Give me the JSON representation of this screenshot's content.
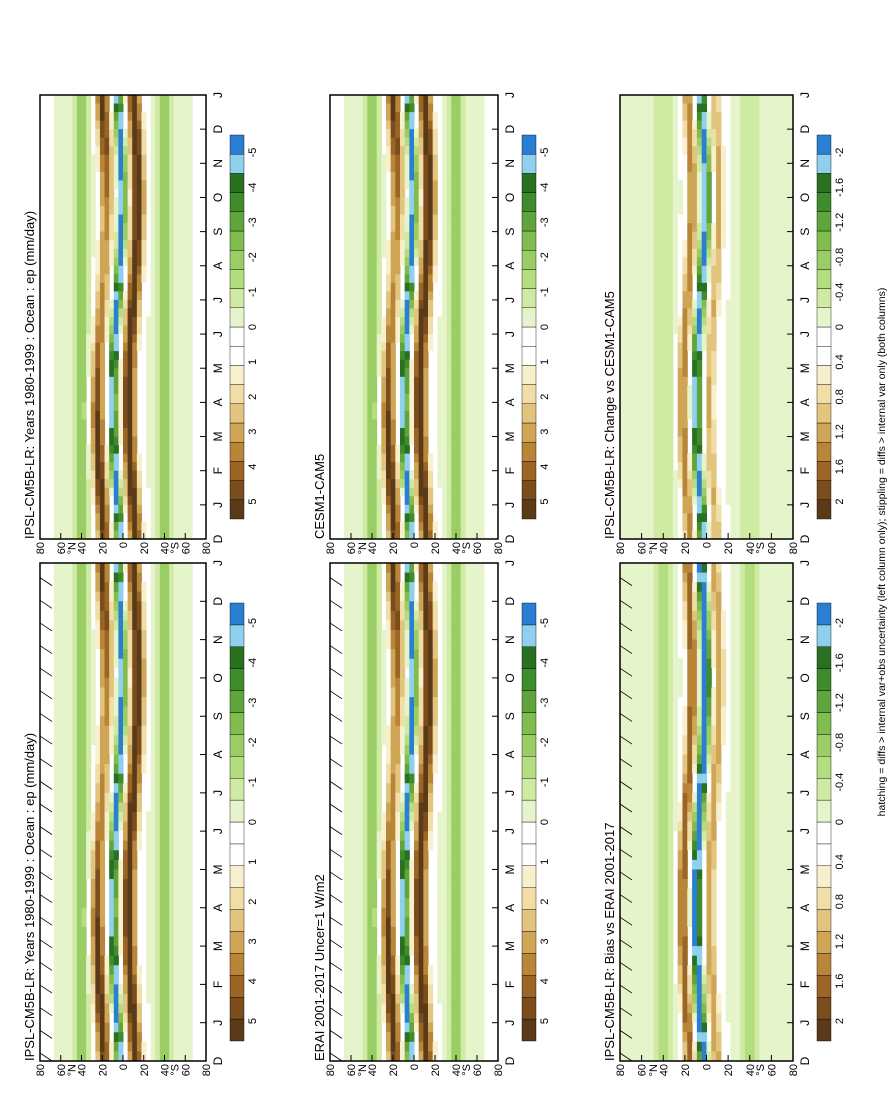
{
  "figure": {
    "footnote": "hatching = diffs > internal var+obs uncertainty (left column only); stippling = diffs > internal var only (both columns)"
  },
  "chart_data": [
    {
      "id": "p1",
      "type": "heatmap",
      "title": "IPSL-CM5B-LR: Years 1980-1999 : Ocean : ep (mm/day)",
      "x_ticks": [
        "D",
        "J",
        "F",
        "M",
        "A",
        "M",
        "J",
        "J",
        "A",
        "S",
        "O",
        "N",
        "D",
        "J"
      ],
      "y_ticks": [
        "80",
        "60",
        "40",
        "20",
        "0",
        "20",
        "40",
        "60",
        "80"
      ],
      "y_hemisphere_labels": {
        "north": "°N",
        "south": "°S"
      },
      "colorbar": {
        "labels": [
          "5",
          "4",
          "3",
          "2",
          "1",
          "0",
          "-1",
          "-2",
          "-3",
          "-4",
          "-5"
        ],
        "colors": [
          "#5a3a18",
          "#7b4c1c",
          "#9b6525",
          "#b98538",
          "#cfa556",
          "#e2c47f",
          "#f0dea6",
          "#f8efcd",
          "#ffffff",
          "#ffffff",
          "#e6f4cb",
          "#cfeaa3",
          "#b4dd82",
          "#9acd65",
          "#80bc4e",
          "#5fa43c",
          "#3f8c2c",
          "#2a7021",
          "#8fd0ef",
          "#2a7fd4"
        ]
      },
      "hatching": true,
      "variant": "model"
    },
    {
      "id": "p2",
      "type": "heatmap",
      "title": "IPSL-CM5B-LR: Years 1980-1999 : Ocean : ep (mm/day)",
      "x_ticks": [
        "D",
        "J",
        "F",
        "M",
        "A",
        "M",
        "J",
        "J",
        "A",
        "S",
        "O",
        "N",
        "D",
        "J"
      ],
      "y_ticks": [
        "80",
        "60",
        "40",
        "20",
        "0",
        "20",
        "40",
        "60",
        "80"
      ],
      "y_hemisphere_labels": {
        "north": "°N",
        "south": "°S"
      },
      "colorbar": {
        "labels": [
          "5",
          "4",
          "3",
          "2",
          "1",
          "0",
          "-1",
          "-2",
          "-3",
          "-4",
          "-5"
        ]
      },
      "hatching": false,
      "variant": "model"
    },
    {
      "id": "p3",
      "type": "heatmap",
      "title": "ERAI 2001-2017 Uncer=1 W/m2",
      "x_ticks": [
        "D",
        "J",
        "F",
        "M",
        "A",
        "M",
        "J",
        "J",
        "A",
        "S",
        "O",
        "N",
        "D",
        "J"
      ],
      "y_ticks": [
        "80",
        "60",
        "40",
        "20",
        "0",
        "20",
        "40",
        "60",
        "80"
      ],
      "y_hemisphere_labels": {
        "north": "°N",
        "south": "°S"
      },
      "colorbar": {
        "labels": [
          "5",
          "4",
          "3",
          "2",
          "1",
          "0",
          "-1",
          "-2",
          "-3",
          "-4",
          "-5"
        ]
      },
      "hatching": true,
      "variant": "obs"
    },
    {
      "id": "p4",
      "type": "heatmap",
      "title": "CESM1-CAM5",
      "x_ticks": [
        "D",
        "J",
        "F",
        "M",
        "A",
        "M",
        "J",
        "J",
        "A",
        "S",
        "O",
        "N",
        "D",
        "J"
      ],
      "y_ticks": [
        "80",
        "60",
        "40",
        "20",
        "0",
        "20",
        "40",
        "60",
        "80"
      ],
      "y_hemisphere_labels": {
        "north": "°N",
        "south": "°S"
      },
      "colorbar": {
        "labels": [
          "5",
          "4",
          "3",
          "2",
          "1",
          "0",
          "-1",
          "-2",
          "-3",
          "-4",
          "-5"
        ]
      },
      "hatching": false,
      "variant": "ref"
    },
    {
      "id": "p5",
      "type": "heatmap",
      "title": "IPSL-CM5B-LR: Bias vs ERAI 2001-2017",
      "x_ticks": [
        "D",
        "J",
        "F",
        "M",
        "A",
        "M",
        "J",
        "J",
        "A",
        "S",
        "O",
        "N",
        "D",
        "J"
      ],
      "y_ticks": [
        "80",
        "60",
        "40",
        "20",
        "0",
        "20",
        "40",
        "60",
        "80"
      ],
      "y_hemisphere_labels": {
        "north": "°N",
        "south": "°S"
      },
      "colorbar": {
        "labels": [
          "2",
          "1.6",
          "1.2",
          "0.8",
          "0.4",
          "0",
          "-0.4",
          "-0.8",
          "-1.2",
          "-1.6",
          "-2"
        ]
      },
      "hatching": true,
      "variant": "bias"
    },
    {
      "id": "p6",
      "type": "heatmap",
      "title": "IPSL-CM5B-LR: Change vs CESM1-CAM5",
      "x_ticks": [
        "D",
        "J",
        "F",
        "M",
        "A",
        "M",
        "J",
        "J",
        "A",
        "S",
        "O",
        "N",
        "D",
        "J"
      ],
      "y_ticks": [
        "80",
        "60",
        "40",
        "20",
        "0",
        "20",
        "40",
        "60",
        "80"
      ],
      "y_hemisphere_labels": {
        "north": "°N",
        "south": "°S"
      },
      "colorbar": {
        "labels": [
          "2",
          "1.6",
          "1.2",
          "0.8",
          "0.4",
          "0",
          "-0.4",
          "-0.8",
          "-1.2",
          "-1.6",
          "-2"
        ]
      },
      "hatching": false,
      "variant": "change"
    }
  ]
}
